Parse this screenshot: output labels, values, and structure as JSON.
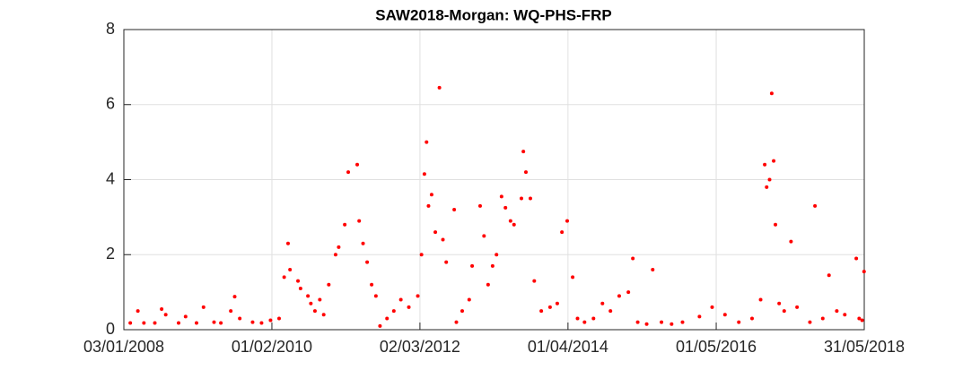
{
  "chart_data": {
    "type": "scatter",
    "title": "SAW2018-Morgan: WQ-PHS-FRP",
    "color": "#ff0000",
    "grid": true,
    "xlim": [
      "03/01/2008",
      "31/05/2018"
    ],
    "xticks": [
      "03/01/2008",
      "01/02/2010",
      "02/03/2012",
      "01/04/2014",
      "01/05/2016",
      "31/05/2018"
    ],
    "ylim": [
      0,
      8
    ],
    "yticks": [
      0,
      2,
      4,
      6,
      8
    ],
    "x": [
      "05/02/2008",
      "15/03/2008",
      "15/04/2008",
      "10/06/2008",
      "15/07/2008",
      "05/08/2008",
      "10/10/2008",
      "15/11/2008",
      "10/01/2009",
      "15/02/2009",
      "10/04/2009",
      "15/05/2009",
      "05/07/2009",
      "25/07/2009",
      "20/08/2009",
      "25/10/2009",
      "10/12/2009",
      "25/01/2010",
      "10/03/2010",
      "05/04/2010",
      "25/04/2010",
      "05/05/2010",
      "15/06/2010",
      "28/06/2010",
      "05/08/2010",
      "20/08/2010",
      "10/09/2010",
      "05/10/2010",
      "25/10/2010",
      "20/11/2010",
      "25/12/2010",
      "10/01/2011",
      "10/02/2011",
      "28/02/2011",
      "15/04/2011",
      "25/04/2011",
      "15/05/2011",
      "05/06/2011",
      "28/06/2011",
      "20/07/2011",
      "10/08/2011",
      "15/09/2011",
      "20/10/2011",
      "25/11/2011",
      "05/01/2012",
      "20/02/2012",
      "10/03/2012",
      "25/03/2012",
      "05/04/2012",
      "15/04/2012",
      "01/05/2012",
      "20/05/2012",
      "10/06/2012",
      "28/06/2012",
      "15/07/2012",
      "25/08/2012",
      "05/09/2012",
      "05/10/2012",
      "10/11/2012",
      "25/11/2012",
      "05/01/2013",
      "25/01/2013",
      "15/02/2013",
      "10/03/2013",
      "30/03/2013",
      "25/04/2013",
      "15/05/2013",
      "10/06/2013",
      "28/06/2013",
      "05/08/2013",
      "15/08/2013",
      "28/08/2013",
      "20/09/2013",
      "10/10/2013",
      "15/11/2013",
      "30/12/2013",
      "05/02/2014",
      "01/03/2014",
      "28/03/2014",
      "25/04/2014",
      "20/05/2014",
      "25/06/2014",
      "10/08/2014",
      "25/09/2014",
      "05/11/2014",
      "20/12/2014",
      "05/02/2015",
      "28/02/2015",
      "25/03/2015",
      "10/05/2015",
      "10/06/2015",
      "25/07/2015",
      "15/09/2015",
      "10/11/2015",
      "05/02/2016",
      "10/04/2016",
      "15/06/2016",
      "25/08/2016",
      "01/11/2016",
      "15/12/2016",
      "05/01/2017",
      "15/01/2017",
      "30/01/2017",
      "10/02/2017",
      "20/02/2017",
      "01/03/2017",
      "20/03/2017",
      "15/04/2017",
      "20/05/2017",
      "20/06/2017",
      "25/08/2017",
      "20/09/2017",
      "30/10/2017",
      "01/12/2017",
      "10/01/2018",
      "20/02/2018",
      "20/04/2018",
      "05/05/2018",
      "20/05/2018",
      "30/05/2018"
    ],
    "values": [
      0.18,
      0.5,
      0.18,
      0.18,
      0.55,
      0.4,
      0.18,
      0.35,
      0.18,
      0.6,
      0.2,
      0.18,
      0.5,
      0.88,
      0.3,
      0.2,
      0.18,
      0.25,
      0.3,
      1.4,
      2.3,
      1.6,
      1.3,
      1.1,
      0.9,
      0.7,
      0.5,
      0.8,
      0.4,
      1.2,
      2.0,
      2.2,
      2.8,
      4.2,
      4.4,
      2.9,
      2.3,
      1.8,
      1.2,
      0.9,
      0.1,
      0.3,
      0.5,
      0.8,
      0.6,
      0.9,
      2.0,
      4.15,
      5.0,
      3.3,
      3.6,
      2.6,
      6.45,
      2.4,
      1.8,
      3.2,
      0.2,
      0.5,
      0.8,
      1.7,
      3.3,
      2.5,
      1.2,
      1.7,
      2.0,
      3.55,
      3.25,
      2.9,
      2.8,
      3.5,
      4.75,
      4.2,
      3.5,
      1.3,
      0.5,
      0.6,
      0.7,
      2.6,
      2.9,
      1.4,
      0.3,
      0.2,
      0.3,
      0.7,
      0.5,
      0.9,
      1.0,
      1.9,
      0.2,
      0.15,
      1.6,
      0.2,
      0.15,
      0.2,
      0.35,
      0.6,
      0.4,
      0.2,
      0.3,
      0.8,
      4.4,
      3.8,
      4.0,
      6.3,
      4.5,
      2.8,
      0.7,
      0.5,
      2.35,
      0.6,
      0.2,
      3.3,
      0.3,
      1.45,
      0.5,
      0.4,
      1.9,
      0.3,
      0.25,
      1.55
    ]
  }
}
